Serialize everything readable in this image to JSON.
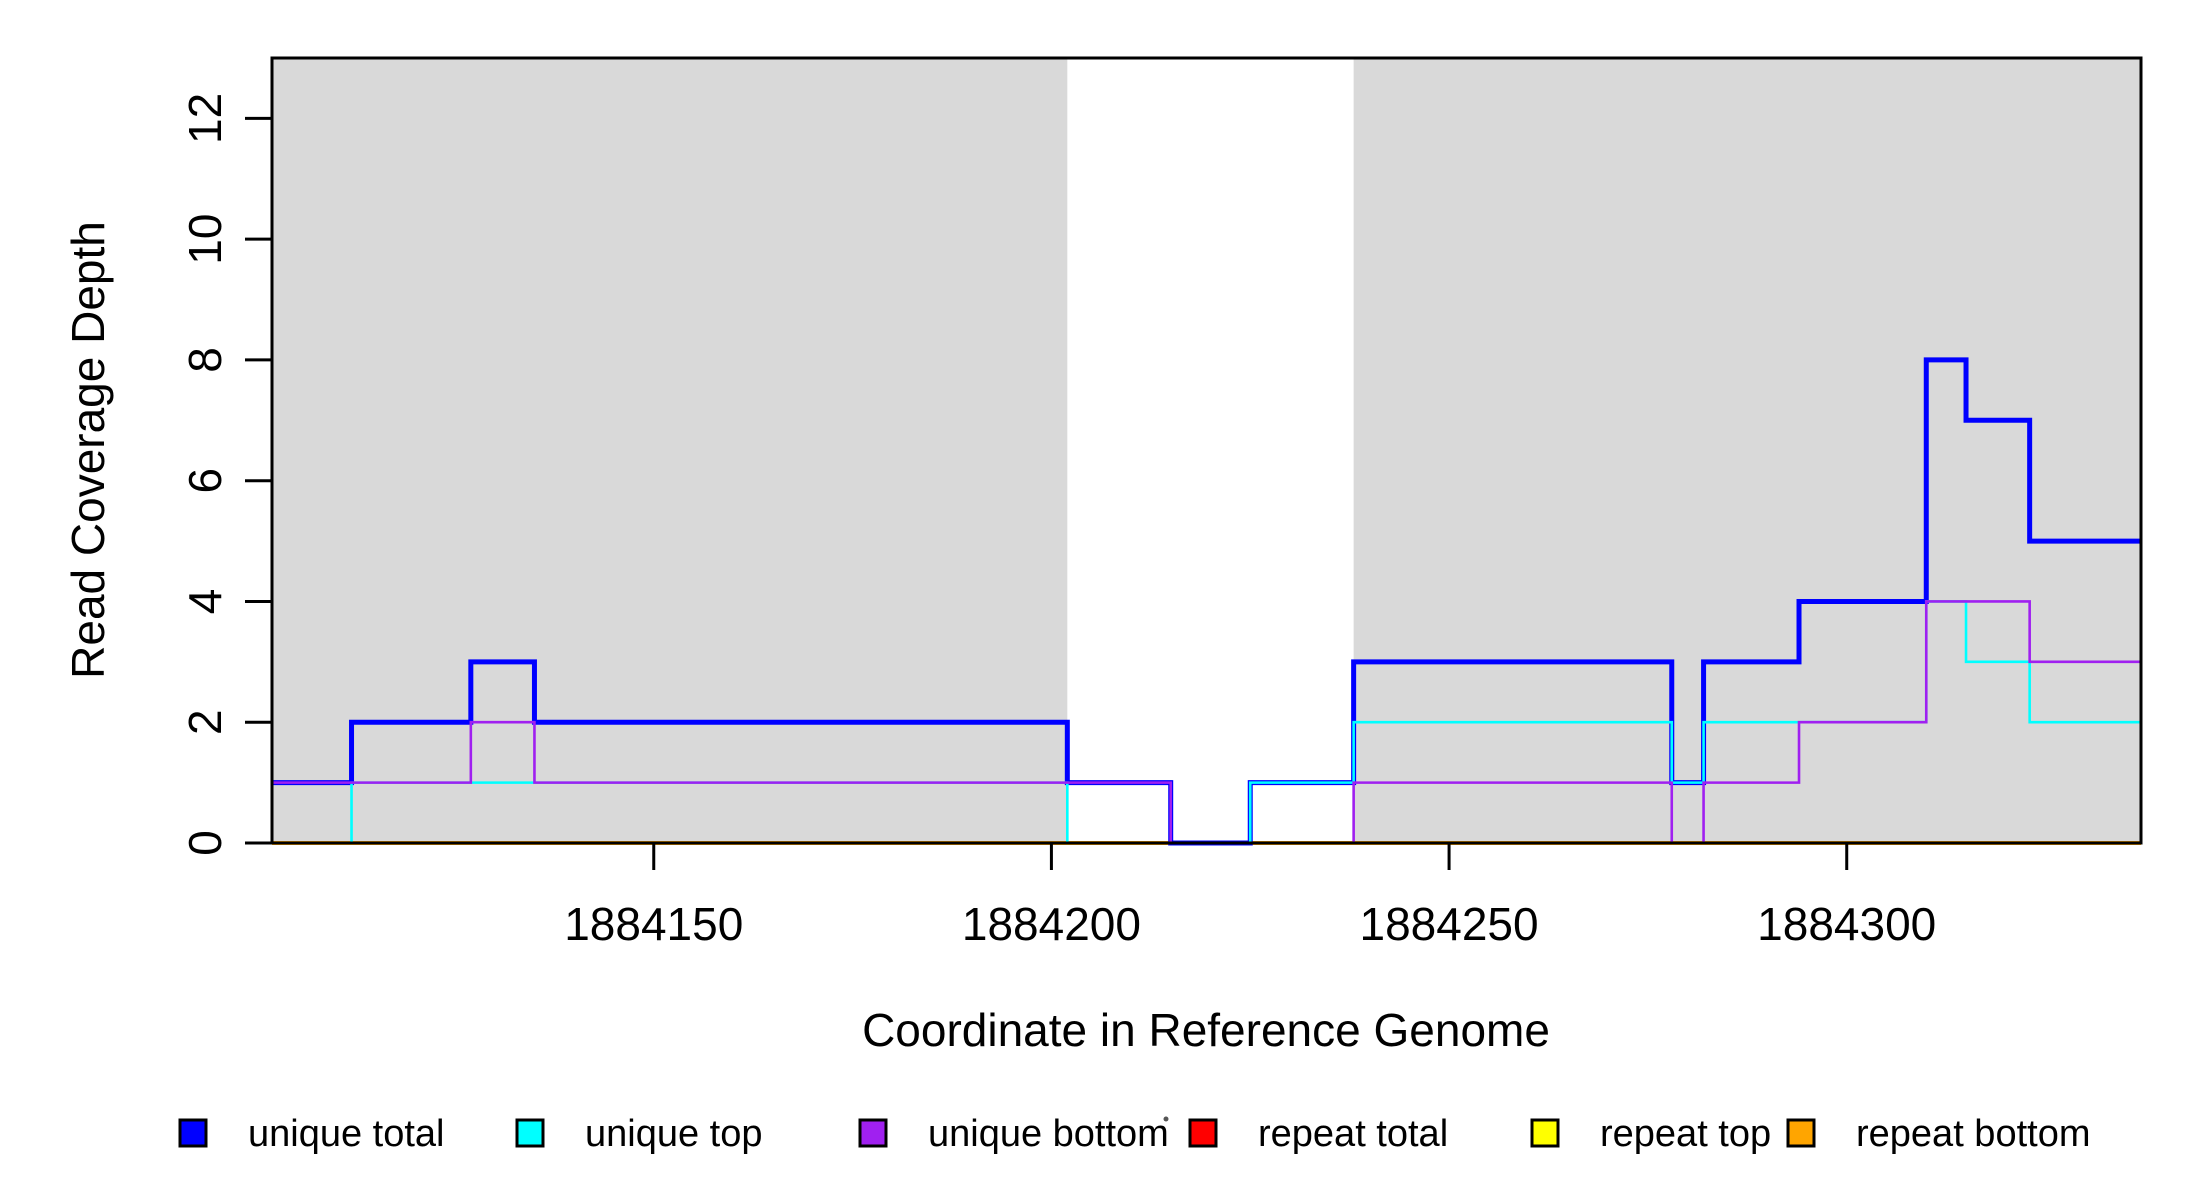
{
  "chart_data": {
    "type": "line",
    "subtype": "step-after-coverage-plot",
    "title": "",
    "xlabel": "Coordinate in Reference Genome",
    "ylabel": "Read Coverage Depth",
    "xlim": [
      1884102,
      1884337
    ],
    "ylim": [
      0,
      13
    ],
    "x_ticks": [
      1884150,
      1884200,
      1884250,
      1884300
    ],
    "y_ticks": [
      0,
      2,
      4,
      6,
      8,
      10,
      12
    ],
    "grid": false,
    "legend_position": "bottom-horizontal",
    "background_color": "#ffffff",
    "shaded_region_color": "#d9d9d9",
    "shaded_regions": [
      {
        "x_start": 1884102,
        "x_end": 1884202
      },
      {
        "x_start": 1884238,
        "x_end": 1884337
      }
    ],
    "x_end": 1884337,
    "series": [
      {
        "name": "repeat total",
        "color": "#ff0000",
        "line_width": 2.6,
        "steps": [
          [
            1884102,
            0
          ]
        ]
      },
      {
        "name": "repeat top",
        "color": "#ffff00",
        "line_width": 2.6,
        "steps": [
          [
            1884102,
            0
          ]
        ]
      },
      {
        "name": "repeat bottom",
        "color": "#ffa500",
        "line_width": 4,
        "steps": [
          [
            1884102,
            0
          ]
        ]
      },
      {
        "name": "unique total",
        "color": "#0000ff",
        "line_width": 5,
        "steps": [
          [
            1884102,
            1
          ],
          [
            1884112,
            2
          ],
          [
            1884127,
            3
          ],
          [
            1884135,
            2
          ],
          [
            1884202,
            1
          ],
          [
            1884215,
            0
          ],
          [
            1884225,
            1
          ],
          [
            1884238,
            3
          ],
          [
            1884278,
            1
          ],
          [
            1884282,
            3
          ],
          [
            1884294,
            4
          ],
          [
            1884310,
            8
          ],
          [
            1884315,
            7
          ],
          [
            1884323,
            5
          ]
        ]
      },
      {
        "name": "unique top",
        "color": "#00ffff",
        "line_width": 2.6,
        "steps": [
          [
            1884102,
            0
          ],
          [
            1884112,
            1
          ],
          [
            1884202,
            0
          ],
          [
            1884225,
            1
          ],
          [
            1884238,
            2
          ],
          [
            1884278,
            1
          ],
          [
            1884282,
            2
          ],
          [
            1884310,
            4
          ],
          [
            1884315,
            3
          ],
          [
            1884323,
            2
          ]
        ]
      },
      {
        "name": "unique bottom",
        "color": "#a020f0",
        "line_width": 2.6,
        "steps": [
          [
            1884102,
            1
          ],
          [
            1884127,
            2
          ],
          [
            1884135,
            1
          ],
          [
            1884215,
            0
          ],
          [
            1884238,
            1
          ],
          [
            1884278,
            0
          ],
          [
            1884282,
            1
          ],
          [
            1884294,
            2
          ],
          [
            1884310,
            4
          ],
          [
            1884323,
            3
          ]
        ]
      }
    ],
    "legend": [
      {
        "label": "unique total",
        "color": "#0000ff"
      },
      {
        "label": "unique top",
        "color": "#00ffff"
      },
      {
        "label": "unique bottom",
        "color": "#a020f0"
      },
      {
        "label": "repeat total",
        "color": "#ff0000"
      },
      {
        "label": "repeat top",
        "color": "#ffff00"
      },
      {
        "label": "repeat bottom",
        "color": "#ffa500"
      }
    ]
  }
}
